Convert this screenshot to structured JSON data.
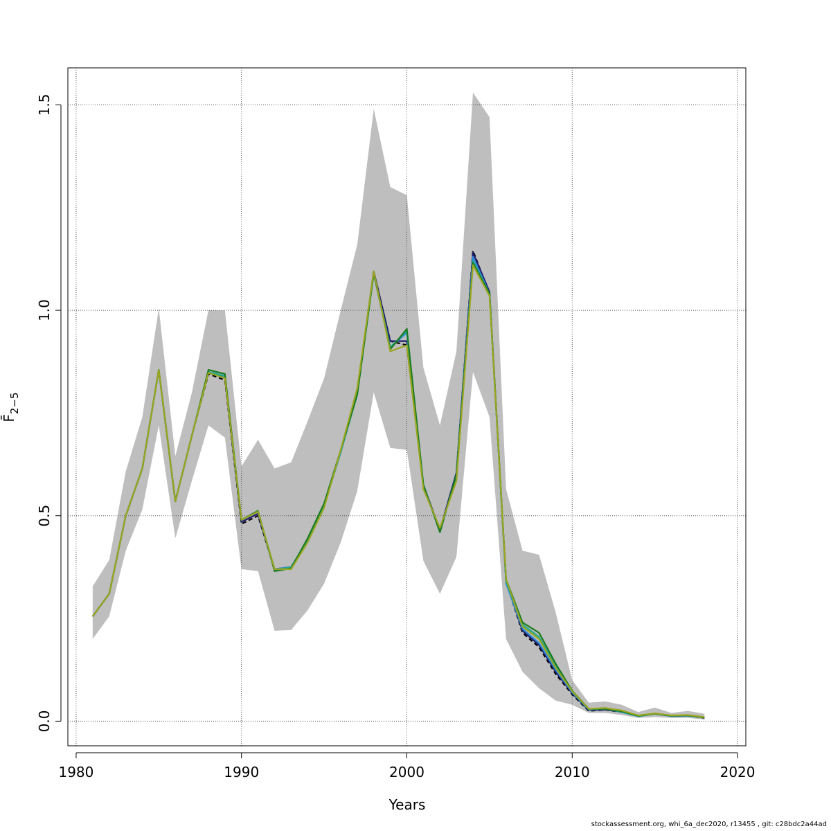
{
  "chart_data": {
    "type": "line",
    "title": "",
    "xlabel": "Years",
    "ylabel": "F̄",
    "ylabel_sub": "2−5",
    "xlim": [
      1979.5,
      2020.5
    ],
    "ylim": [
      -0.06,
      1.59
    ],
    "x_ticks": [
      1980,
      1990,
      2000,
      2010,
      2020
    ],
    "y_ticks": [
      0.0,
      0.5,
      1.0,
      1.5
    ],
    "x_tick_labels": [
      "1980",
      "1990",
      "2000",
      "2010",
      "2020"
    ],
    "y_tick_labels": [
      "0.0",
      "0.5",
      "1.0",
      "1.5"
    ],
    "grid": true,
    "legend": "none",
    "x": [
      1981,
      1982,
      1983,
      1984,
      1985,
      1986,
      1987,
      1988,
      1989,
      1990,
      1991,
      1992,
      1993,
      1994,
      1995,
      1996,
      1997,
      1998,
      1999,
      2000,
      2001,
      2002,
      2003,
      2004,
      2005,
      2006,
      2007,
      2008,
      2009,
      2010,
      2011,
      2012,
      2013,
      2014,
      2015,
      2016,
      2017,
      2018
    ],
    "band": {
      "color": "#bebebe",
      "lower": [
        0.2,
        0.255,
        0.415,
        0.515,
        0.72,
        0.445,
        0.585,
        0.72,
        0.69,
        0.37,
        0.365,
        0.22,
        0.222,
        0.27,
        0.335,
        0.435,
        0.56,
        0.8,
        0.665,
        0.66,
        0.39,
        0.31,
        0.4,
        0.85,
        0.74,
        0.2,
        0.12,
        0.08,
        0.05,
        0.04,
        0.02,
        0.02,
        0.015,
        0.008,
        0.01,
        0.008,
        0.008,
        0.004
      ],
      "upper": [
        0.328,
        0.392,
        0.608,
        0.74,
        1.005,
        0.645,
        0.8,
        1.0,
        1.0,
        0.62,
        0.685,
        0.615,
        0.63,
        0.73,
        0.835,
        1.0,
        1.16,
        1.49,
        1.3,
        1.28,
        0.86,
        0.72,
        0.9,
        1.53,
        1.47,
        0.565,
        0.415,
        0.405,
        0.265,
        0.1,
        0.045,
        0.048,
        0.04,
        0.022,
        0.033,
        0.02,
        0.025,
        0.018
      ]
    },
    "series": [
      {
        "color": "#000000",
        "dashed": true,
        "values": [
          0.255,
          0.31,
          0.5,
          0.615,
          0.855,
          0.535,
          0.695,
          0.845,
          0.83,
          0.48,
          0.5,
          0.37,
          0.375,
          0.44,
          0.525,
          0.655,
          0.8,
          1.095,
          0.925,
          0.915,
          0.57,
          0.465,
          0.6,
          1.145,
          1.04,
          0.34,
          0.215,
          0.18,
          0.115,
          0.065,
          0.025,
          0.028,
          0.022,
          0.013,
          0.018,
          0.013,
          0.014,
          0.008
        ]
      },
      {
        "color": "#1f1a6e",
        "dashed": false,
        "values": [
          0.255,
          0.31,
          0.5,
          0.615,
          0.855,
          0.535,
          0.695,
          0.85,
          0.835,
          0.485,
          0.505,
          0.37,
          0.375,
          0.44,
          0.525,
          0.655,
          0.8,
          1.095,
          0.925,
          0.925,
          0.575,
          0.465,
          0.605,
          1.14,
          1.045,
          0.34,
          0.22,
          0.185,
          0.12,
          0.068,
          0.027,
          0.028,
          0.023,
          0.013,
          0.018,
          0.013,
          0.014,
          0.009
        ]
      },
      {
        "color": "#2e8fd6",
        "dashed": false,
        "values": [
          0.255,
          0.31,
          0.5,
          0.615,
          0.855,
          0.535,
          0.695,
          0.85,
          0.84,
          0.49,
          0.51,
          0.37,
          0.375,
          0.44,
          0.525,
          0.655,
          0.8,
          1.09,
          0.91,
          0.945,
          0.575,
          0.46,
          0.6,
          1.13,
          1.04,
          0.335,
          0.225,
          0.19,
          0.125,
          0.07,
          0.028,
          0.03,
          0.022,
          0.012,
          0.018,
          0.012,
          0.013,
          0.009
        ]
      },
      {
        "color": "#1ea88f",
        "dashed": false,
        "values": [
          0.255,
          0.31,
          0.5,
          0.615,
          0.855,
          0.535,
          0.695,
          0.85,
          0.84,
          0.49,
          0.51,
          0.368,
          0.375,
          0.44,
          0.525,
          0.655,
          0.795,
          1.09,
          0.91,
          0.95,
          0.575,
          0.46,
          0.6,
          1.12,
          1.04,
          0.34,
          0.235,
          0.205,
          0.135,
          0.072,
          0.029,
          0.03,
          0.023,
          0.012,
          0.018,
          0.013,
          0.014,
          0.009
        ]
      },
      {
        "color": "#1a7a1e",
        "dashed": false,
        "values": [
          0.255,
          0.31,
          0.5,
          0.615,
          0.855,
          0.535,
          0.695,
          0.855,
          0.845,
          0.49,
          0.512,
          0.365,
          0.372,
          0.445,
          0.53,
          0.66,
          0.795,
          1.09,
          0.905,
          0.955,
          0.575,
          0.46,
          0.6,
          1.115,
          1.04,
          0.345,
          0.24,
          0.215,
          0.14,
          0.074,
          0.03,
          0.03,
          0.024,
          0.013,
          0.018,
          0.013,
          0.014,
          0.009
        ]
      },
      {
        "color": "#9aa61e",
        "dashed": false,
        "values": [
          0.255,
          0.31,
          0.5,
          0.615,
          0.855,
          0.535,
          0.695,
          0.848,
          0.835,
          0.49,
          0.51,
          0.37,
          0.37,
          0.435,
          0.52,
          0.66,
          0.81,
          1.095,
          0.9,
          0.915,
          0.565,
          0.47,
          0.585,
          1.11,
          1.035,
          0.345,
          0.23,
          0.2,
          0.13,
          0.073,
          0.03,
          0.032,
          0.026,
          0.014,
          0.019,
          0.014,
          0.015,
          0.01
        ]
      }
    ]
  },
  "footer_text": "stockassessment.org, whi_6a_dec2020, r13455 , git: c28bdc2a44ad"
}
